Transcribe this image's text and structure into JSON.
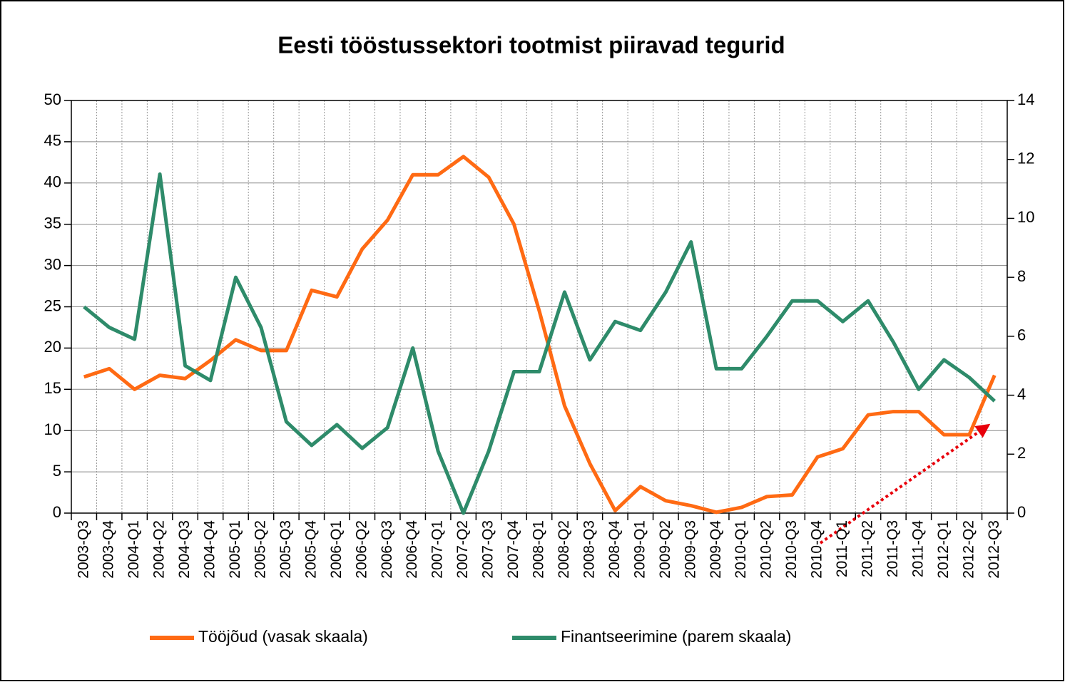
{
  "chart_data": {
    "type": "line",
    "title": "Eesti tööstussektori tootmist piiravad tegurid",
    "categories": [
      "2003-Q3",
      "2003-Q4",
      "2004-Q1",
      "2004-Q2",
      "2004-Q3",
      "2004-Q4",
      "2005-Q1",
      "2005-Q2",
      "2005-Q3",
      "2005-Q4",
      "2006-Q1",
      "2006-Q2",
      "2006-Q3",
      "2006-Q4",
      "2007-Q1",
      "2007-Q2",
      "2007-Q3",
      "2007-Q4",
      "2008-Q1",
      "2008-Q2",
      "2008-Q3",
      "2008-Q4",
      "2009-Q1",
      "2009-Q2",
      "2009-Q3",
      "2009-Q4",
      "2010-Q1",
      "2010-Q2",
      "2010-Q3",
      "2010-Q4",
      "2011-Q1",
      "2011-Q2",
      "2011-Q3",
      "2011-Q4",
      "2012-Q1",
      "2012-Q2",
      "2012-Q3"
    ],
    "series": [
      {
        "name": "Tööjõud (vasak skaala)",
        "color": "#ff6a13",
        "axis": "y",
        "values": [
          16.5,
          17.5,
          15,
          16.7,
          16.3,
          18.5,
          21,
          19.7,
          19.7,
          27,
          26.2,
          32,
          35.5,
          41,
          41,
          43.2,
          40.7,
          35,
          24.5,
          13,
          6,
          0.3,
          3.2,
          1.5,
          0.9,
          0.1,
          0.7,
          2,
          2.2,
          6.8,
          7.8,
          11.9,
          12.3,
          12.3,
          9.5,
          9.5,
          16.7
        ]
      },
      {
        "name": "Finantseerimine (parem skaala)",
        "color": "#2e8b6a",
        "axis": "y2",
        "values": [
          7.0,
          6.3,
          5.9,
          11.5,
          5.0,
          4.5,
          8.0,
          6.3,
          3.1,
          2.3,
          3.0,
          2.2,
          2.9,
          5.6,
          2.1,
          0,
          2.1,
          4.8,
          4.8,
          7.5,
          5.2,
          6.5,
          6.2,
          7.5,
          9.2,
          4.9,
          4.9,
          6.0,
          7.2,
          7.2,
          6.5,
          7.2,
          5.8,
          4.2,
          5.2,
          4.6,
          3.8
        ]
      }
    ],
    "ylim": [
      0,
      50
    ],
    "yticks": [
      0,
      5,
      10,
      15,
      20,
      25,
      30,
      35,
      40,
      45,
      50
    ],
    "y2lim": [
      0,
      14
    ],
    "y2ticks": [
      0,
      2,
      4,
      6,
      8,
      10,
      12,
      14
    ],
    "grid": true,
    "legend": "bottom"
  }
}
